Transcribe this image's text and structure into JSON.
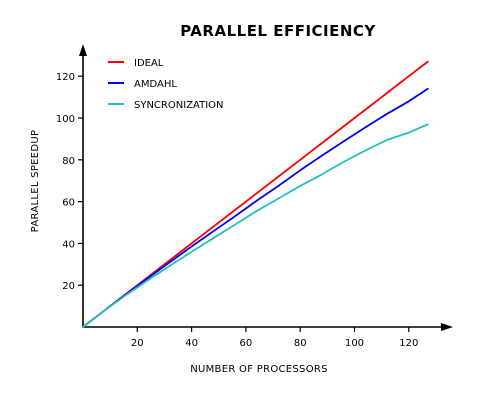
{
  "chart_data": {
    "type": "line",
    "title": "Parallel Efficiency",
    "xlabel": "Number of Processors",
    "ylabel": "Parallel Speedup",
    "xlim": [
      0,
      128
    ],
    "ylim": [
      0,
      128
    ],
    "x_ticks": [
      20,
      40,
      60,
      80,
      100,
      120
    ],
    "y_ticks": [
      20,
      40,
      60,
      80,
      100,
      120
    ],
    "grid": false,
    "legend_position": "top-left",
    "x": [
      0,
      8,
      16,
      24,
      32,
      40,
      48,
      56,
      64,
      72,
      80,
      88,
      96,
      104,
      112,
      120,
      127
    ],
    "series": [
      {
        "name": "Ideal",
        "color": "#ff0000",
        "values": [
          0,
          8,
          16,
          24,
          32,
          40,
          48,
          56,
          64,
          72,
          80,
          88,
          96,
          104,
          112,
          120,
          127
        ]
      },
      {
        "name": "Amdahl",
        "color": "#0000ff",
        "values": [
          0,
          8,
          15.8,
          23.5,
          31,
          38.5,
          45.8,
          53,
          60.5,
          67.5,
          75,
          82,
          88.8,
          95.5,
          102,
          108,
          114
        ]
      },
      {
        "name": "Syncronization",
        "color": "#20c0c0",
        "values": [
          0,
          8,
          15.4,
          22.5,
          29.3,
          36,
          42.5,
          49,
          55.5,
          61.5,
          67.5,
          73,
          79,
          84.5,
          89.5,
          93,
          97
        ]
      }
    ]
  }
}
